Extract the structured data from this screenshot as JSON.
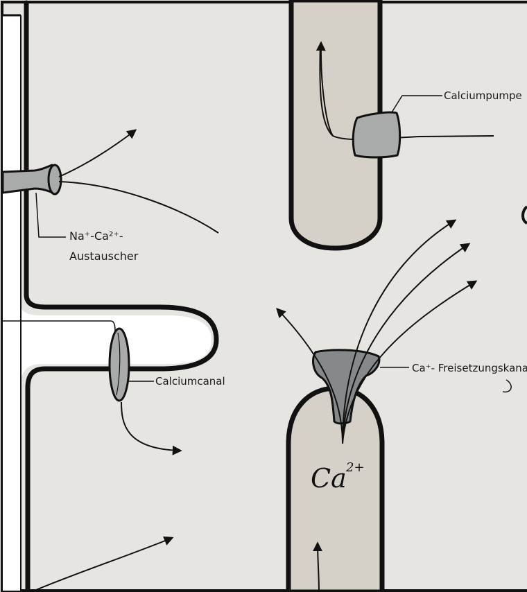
{
  "colors": {
    "background": "#e6e5e1",
    "outline": "#111111",
    "cell_fill": "#ffffff",
    "organelle_fill": "#d5d1c9",
    "protein_fill": "#a9abab",
    "receptor_fill": "#86898a"
  },
  "labels": {
    "calcium_pump": "Calciumpumpe",
    "exchanger_line1": "Na⁺-Ca²⁺-",
    "exchanger_line2": "Austauscher",
    "calcium_channel": "Calciumcanal",
    "release_channel": "Ca⁺- Freisetzungskanal",
    "ion": "Ca",
    "ion_charge": "2+"
  }
}
